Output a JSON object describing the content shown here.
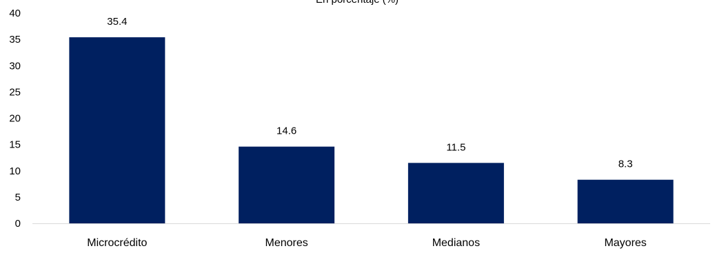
{
  "chart_data": {
    "type": "bar",
    "subtitle": "En porcentaje (%)",
    "categories": [
      "Microcrédito",
      "Menores",
      "Medianos",
      "Mayores"
    ],
    "values": [
      35.4,
      14.6,
      11.5,
      8.3
    ],
    "value_labels": [
      "35.4",
      "14.6",
      "11.5",
      "8.3"
    ],
    "ylim": [
      0,
      40
    ],
    "yticks": [
      0,
      5,
      10,
      15,
      20,
      25,
      30,
      35,
      40
    ],
    "xlabel": "",
    "ylabel": "",
    "grid": false,
    "legend": "none",
    "bar_color": "#002060"
  }
}
